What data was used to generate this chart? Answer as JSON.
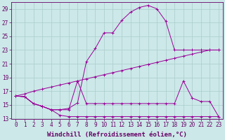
{
  "bg_color": "#cce8e8",
  "line_color": "#990099",
  "grid_color": "#aacccc",
  "xlabel": "Windchill (Refroidissement éolien,°C)",
  "xlabel_color": "#660066",
  "tick_color": "#660066",
  "axis_color": "#660066",
  "xlim": [
    -0.5,
    23.5
  ],
  "ylim": [
    13,
    30
  ],
  "yticks": [
    13,
    15,
    17,
    19,
    21,
    23,
    25,
    27,
    29
  ],
  "xticks": [
    0,
    1,
    2,
    3,
    4,
    5,
    6,
    7,
    8,
    9,
    10,
    11,
    12,
    13,
    14,
    15,
    16,
    17,
    18,
    19,
    20,
    21,
    22,
    23
  ],
  "curves": [
    {
      "x": [
        0,
        1,
        2,
        3,
        4,
        5,
        6,
        7,
        8,
        9,
        10,
        11,
        12,
        13,
        14,
        15,
        16,
        17,
        18,
        19,
        20,
        21,
        22,
        23
      ],
      "y": [
        16.3,
        16.2,
        15.2,
        14.8,
        14.3,
        13.5,
        13.3,
        13.3,
        13.3,
        13.3,
        13.3,
        13.3,
        13.3,
        13.3,
        13.3,
        13.3,
        13.3,
        13.3,
        13.3,
        13.3,
        13.3,
        13.3,
        13.3,
        13.3
      ]
    },
    {
      "x": [
        0,
        1,
        2,
        3,
        4,
        5,
        6,
        7,
        8,
        9,
        10,
        11,
        12,
        13,
        14,
        15,
        16,
        17,
        18,
        19,
        20,
        21,
        22,
        23
      ],
      "y": [
        16.3,
        16.2,
        15.2,
        14.8,
        14.3,
        14.3,
        14.3,
        18.5,
        15.2,
        15.2,
        15.2,
        15.2,
        15.2,
        15.2,
        15.2,
        15.2,
        15.2,
        15.2,
        15.2,
        18.5,
        16.0,
        15.5,
        15.5,
        13.3
      ]
    },
    {
      "x": [
        0,
        1,
        2,
        3,
        4,
        5,
        6,
        7,
        8,
        9,
        10,
        11,
        12,
        13,
        14,
        15,
        16,
        17,
        18,
        19,
        20,
        21,
        22,
        23
      ],
      "y": [
        16.3,
        16.6,
        17.0,
        17.3,
        17.6,
        17.9,
        18.2,
        18.5,
        18.8,
        19.1,
        19.4,
        19.7,
        20.0,
        20.3,
        20.6,
        20.9,
        21.2,
        21.5,
        21.8,
        22.1,
        22.4,
        22.7,
        23.0,
        23.0
      ]
    },
    {
      "x": [
        0,
        1,
        2,
        3,
        4,
        5,
        6,
        7,
        8,
        9,
        10,
        11,
        12,
        13,
        14,
        15,
        16,
        17,
        18,
        19,
        20,
        21,
        22,
        23
      ],
      "y": [
        16.3,
        16.2,
        15.2,
        14.8,
        14.3,
        14.3,
        14.5,
        15.3,
        21.3,
        23.2,
        25.5,
        25.5,
        27.3,
        28.5,
        29.2,
        29.5,
        29.0,
        27.2,
        23.0,
        23.0,
        23.0,
        23.0,
        23.0,
        23.0
      ]
    }
  ],
  "figsize": [
    3.2,
    2.0
  ],
  "dpi": 100,
  "font_size": 6.5
}
